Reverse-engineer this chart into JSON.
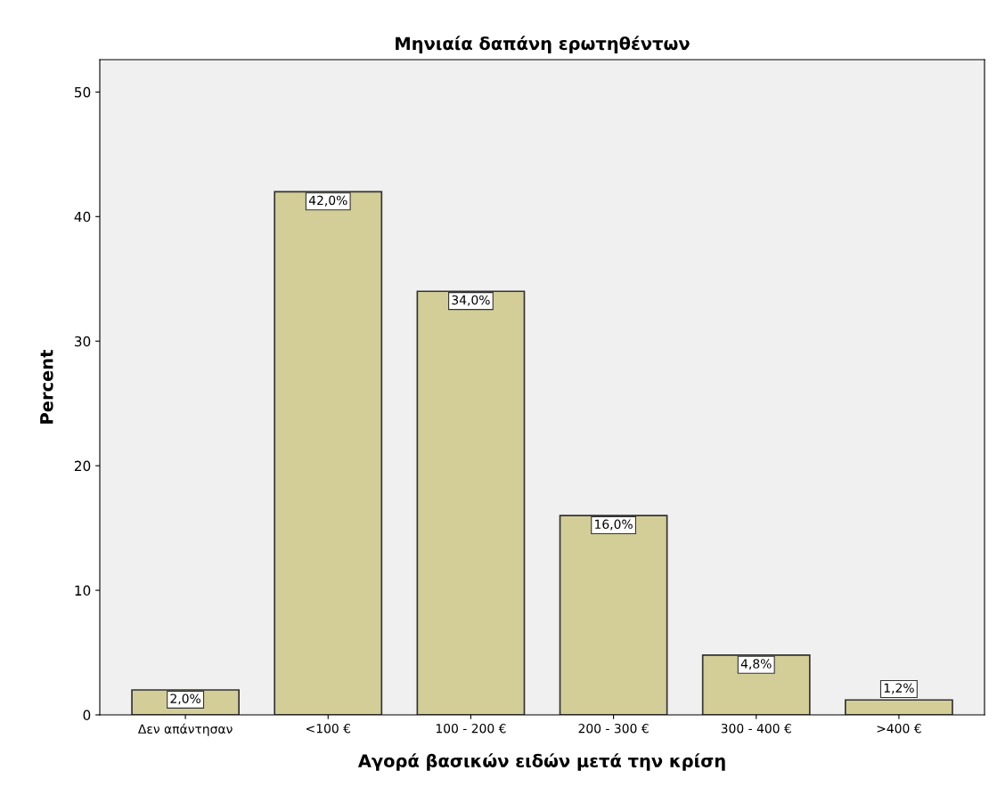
{
  "chart_data": {
    "type": "bar",
    "title": "Μηνιαία δαπάνη ερωτηθέντων",
    "xlabel": "Αγορά βασικών ειδών μετά την κρίση",
    "ylabel": "Percent",
    "categories": [
      "Δεν απάντησαν",
      "<100 €",
      "100 - 200 €",
      "200 - 300 €",
      "300 - 400 €",
      ">400 €"
    ],
    "values": [
      2.0,
      42.0,
      34.0,
      16.0,
      4.8,
      1.2
    ],
    "value_labels": [
      "2,0%",
      "42,0%",
      "34,0%",
      "16,0%",
      "4,8%",
      "1,2%"
    ],
    "color": "#d3ce97",
    "ylim": [
      0,
      52.6
    ],
    "yticks": [
      0,
      10,
      20,
      30,
      40,
      50
    ],
    "grid": false,
    "legend": false
  }
}
